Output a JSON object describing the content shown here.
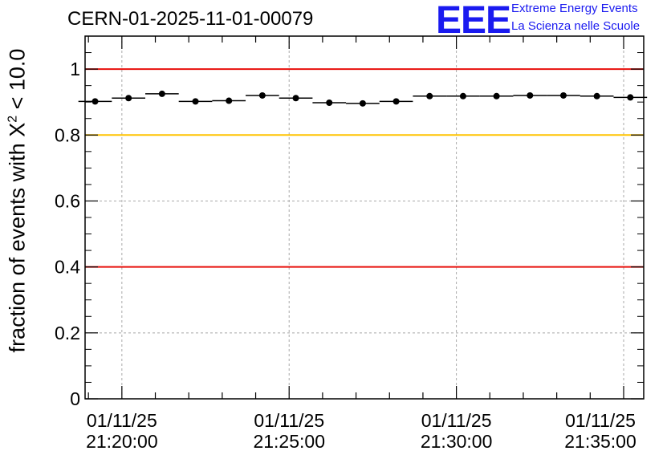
{
  "chart_data": {
    "type": "scatter",
    "title": "CERN-01-2025-11-01-00079",
    "logo": {
      "text": "EEE",
      "line1": "Extreme Energy Events",
      "line2": "La Scienza nelle Scuole",
      "color": "#1a1af0"
    },
    "ylabel_main": "fraction of events with X",
    "ylabel_sup": "2",
    "ylabel_tail": " < 10.0",
    "ylim": [
      0,
      1.1
    ],
    "yticks": [
      0,
      0.2,
      0.4,
      0.6,
      0.8,
      1
    ],
    "ytick_labels": [
      "0",
      "0.2",
      "0.4",
      "0.6",
      "0.8",
      "1"
    ],
    "xlim_min": [
      18.9,
      35.6
    ],
    "xticks_min": [
      20,
      25,
      30,
      35
    ],
    "xtick_labels": [
      {
        "date": "01/11/25",
        "time": "21:20:00"
      },
      {
        "date": "01/11/25",
        "time": "21:25:00"
      },
      {
        "date": "01/11/25",
        "time": "21:30:00"
      },
      {
        "date": "01/11/25",
        "time": "21:35:00"
      }
    ],
    "reference_lines": [
      {
        "y": 1.0,
        "color": "#e8100c"
      },
      {
        "y": 0.8,
        "color": "#ffc400"
      },
      {
        "y": 0.4,
        "color": "#e8100c"
      }
    ],
    "grid": true,
    "series": [
      {
        "name": "fraction",
        "x_min": [
          19.2,
          20.2,
          21.2,
          22.2,
          23.2,
          24.2,
          25.2,
          26.2,
          27.2,
          28.2,
          29.2,
          30.2,
          31.2,
          32.2,
          33.2,
          34.2,
          35.2
        ],
        "values": [
          0.902,
          0.912,
          0.925,
          0.902,
          0.904,
          0.92,
          0.912,
          0.898,
          0.896,
          0.902,
          0.918,
          0.918,
          0.918,
          0.92,
          0.92,
          0.918,
          0.914
        ],
        "bin_half_width_min": 0.5
      }
    ]
  }
}
